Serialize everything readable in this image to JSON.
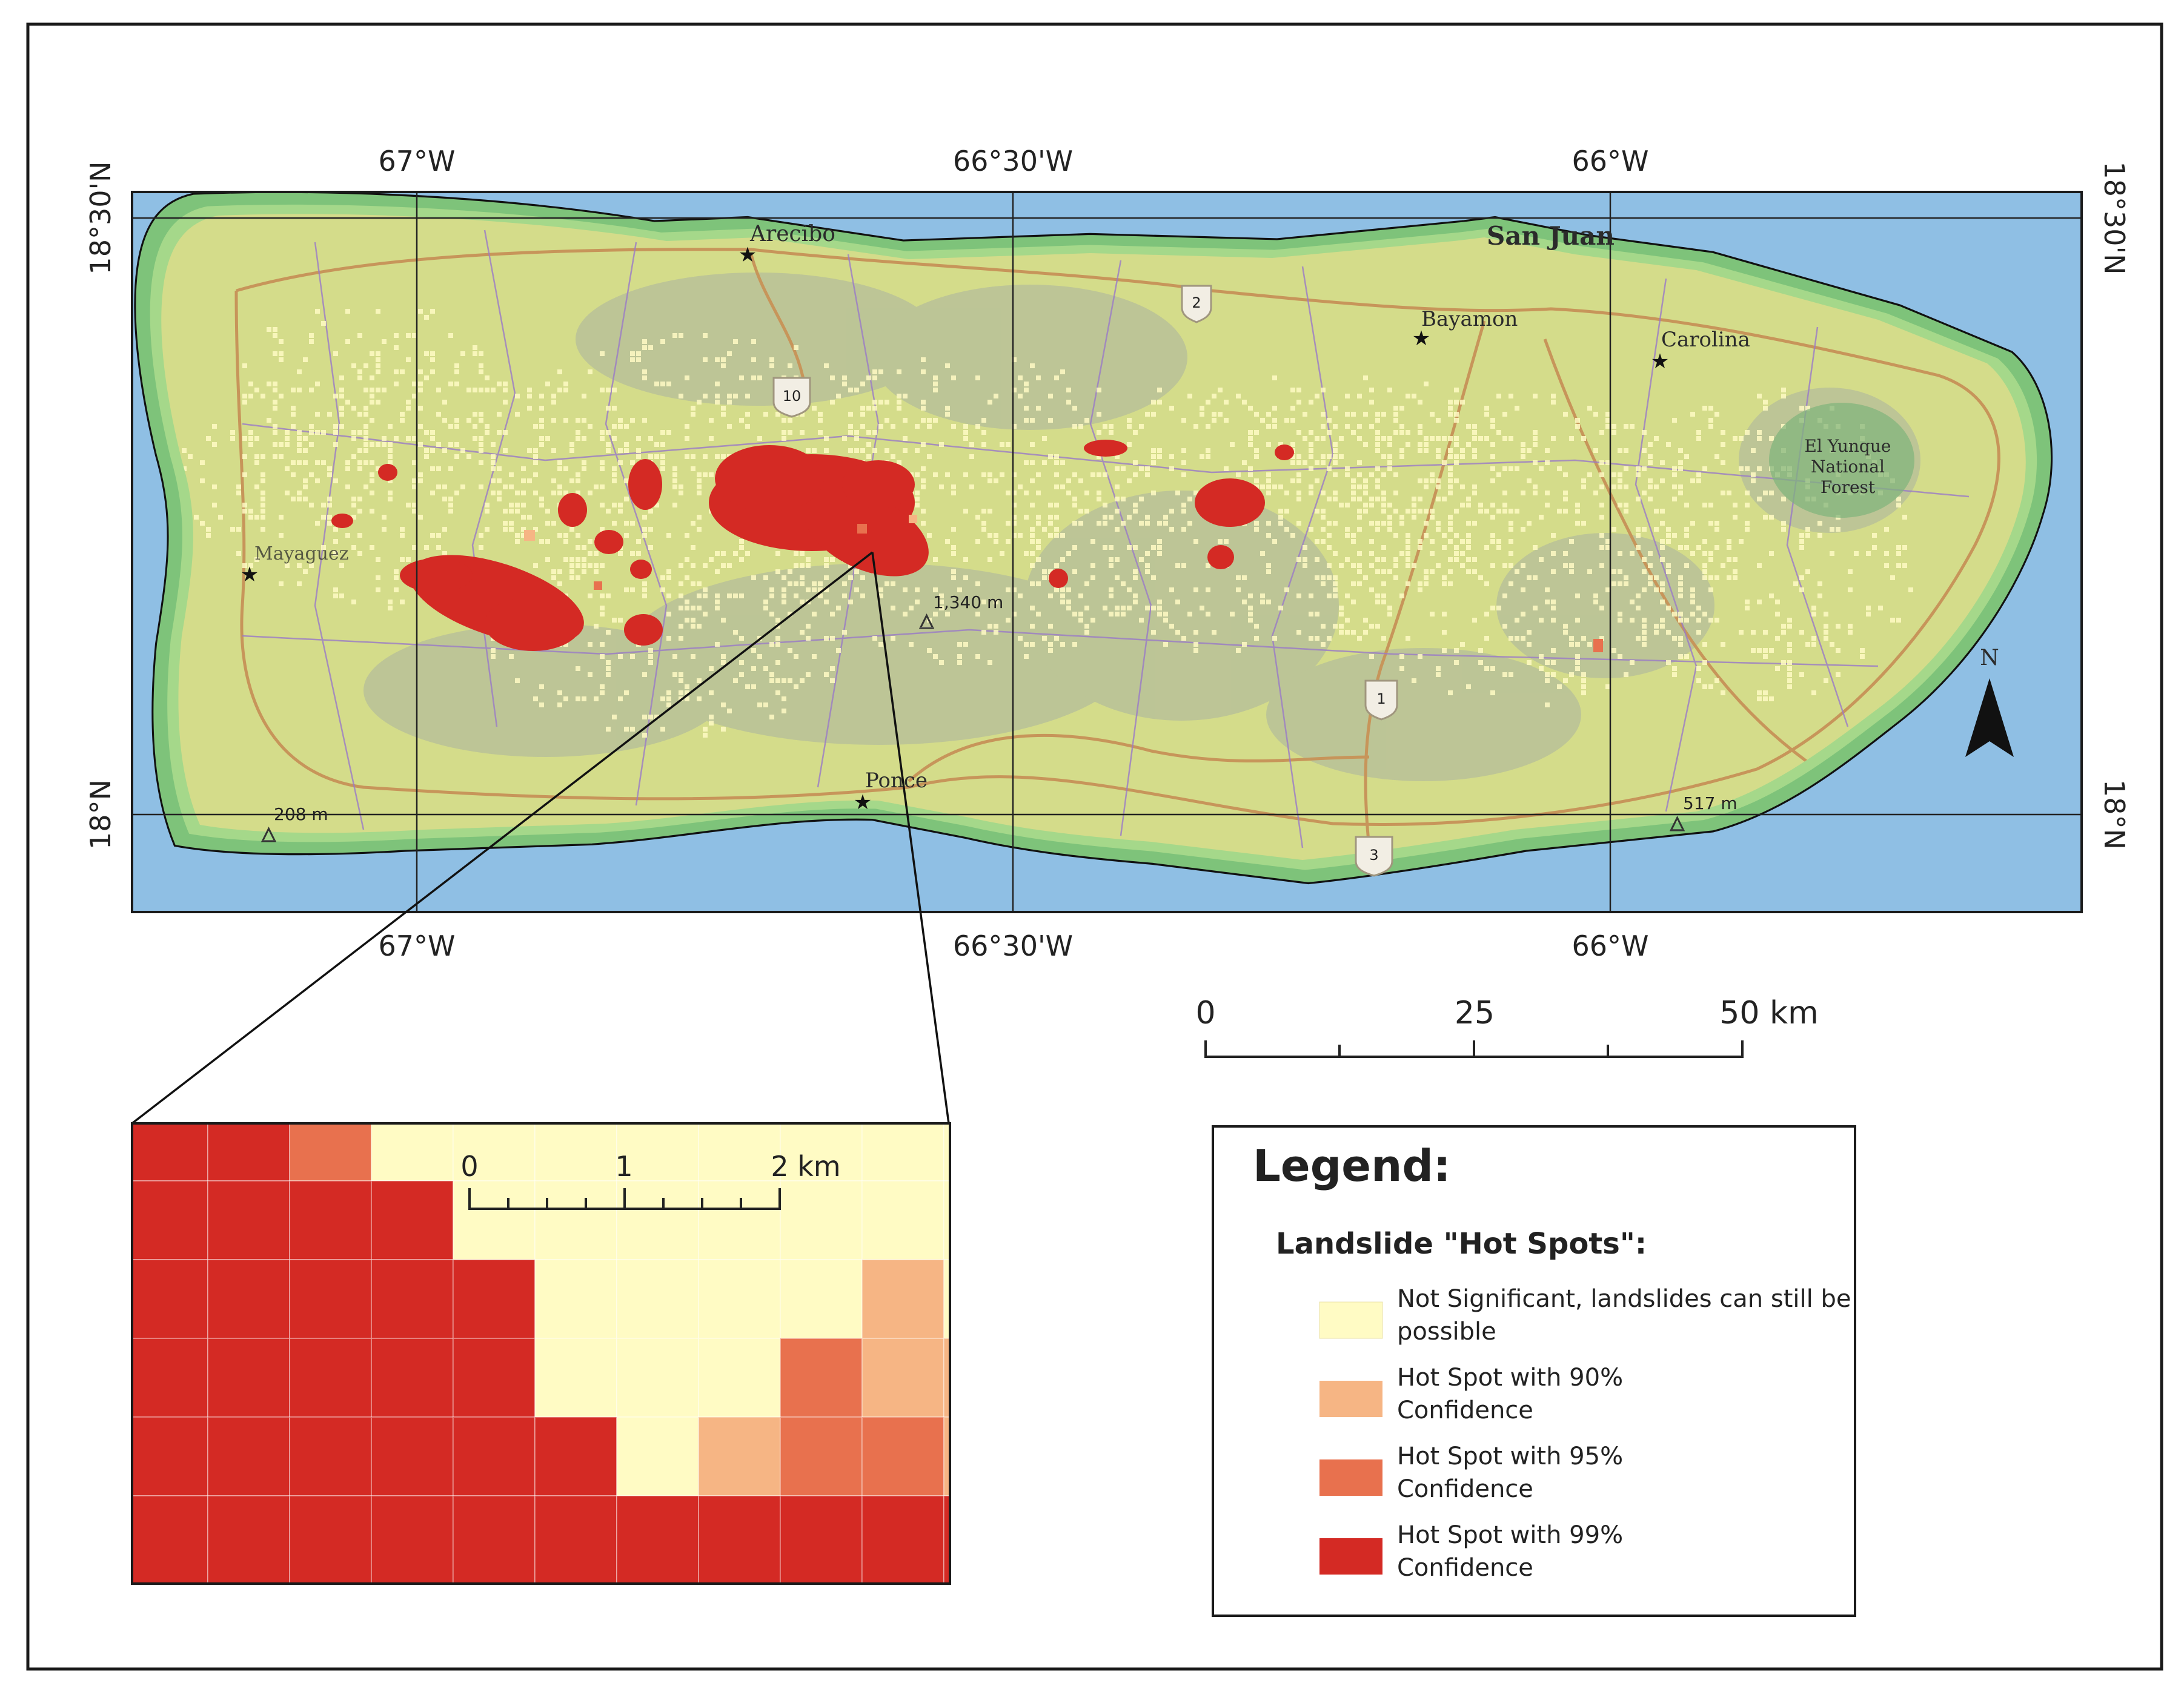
{
  "coordinates": {
    "top": [
      "67°W",
      "66°30'W",
      "66°W"
    ],
    "bottom": [
      "67°W",
      "66°30'W",
      "66°W"
    ],
    "left": [
      "18°30'N",
      "18°N"
    ],
    "right": [
      "18°30'N",
      "18°N"
    ]
  },
  "places": {
    "arecibo": "Arecibo",
    "san_juan": "San Juan",
    "bayamon": "Bayamon",
    "carolina": "Carolina",
    "ponce": "Ponce",
    "mayaguez": "Mayaguez",
    "yunque": [
      "El Yunque",
      "National",
      "Forest"
    ]
  },
  "routes": [
    "2",
    "10",
    "1",
    "3"
  ],
  "elevations": {
    "west": "208 m",
    "central": "1,340 m",
    "east": "517 m"
  },
  "north_arrow": "N",
  "scale_main": {
    "ticks": [
      "0",
      "25",
      "50 km"
    ]
  },
  "inset": {
    "scale_ticks": [
      "0",
      "1",
      "2"
    ],
    "scale_unit": "km"
  },
  "legend": {
    "title": "Legend:",
    "subtitle": "Landslide \"Hot Spots\":",
    "items": [
      {
        "lines": [
          "Not Significant, landslides can still be",
          "possible"
        ],
        "color": "#fffbc4"
      },
      {
        "lines": [
          "Hot Spot with 90%",
          "Confidence"
        ],
        "color": "#f6b584"
      },
      {
        "lines": [
          "Hot Spot with 95%",
          "Confidence"
        ],
        "color": "#e8714e"
      },
      {
        "lines": [
          "Hot Spot with 99%",
          "Confidence"
        ],
        "color": "#d42a24"
      }
    ]
  },
  "colors": {
    "ocean": "#8fbfe4",
    "coast_outer": "#7ec37a",
    "coast_inner": "#a5d88a",
    "land": "#d4dc8a",
    "hotspot99": "#d42a24",
    "hotspot95": "#e8714e",
    "hotspot90": "#f6b584",
    "not_significant": "#fffbc4"
  },
  "inset_grid": [
    "RRNCCCCCCCCNA",
    "RRRRCCCCCCCCC",
    "RRRRRCCCCACCC",
    "RRRRRCCCWAACC",
    "RRRRRRCAWWACC",
    "RRRRRRRRRRRCC"
  ]
}
